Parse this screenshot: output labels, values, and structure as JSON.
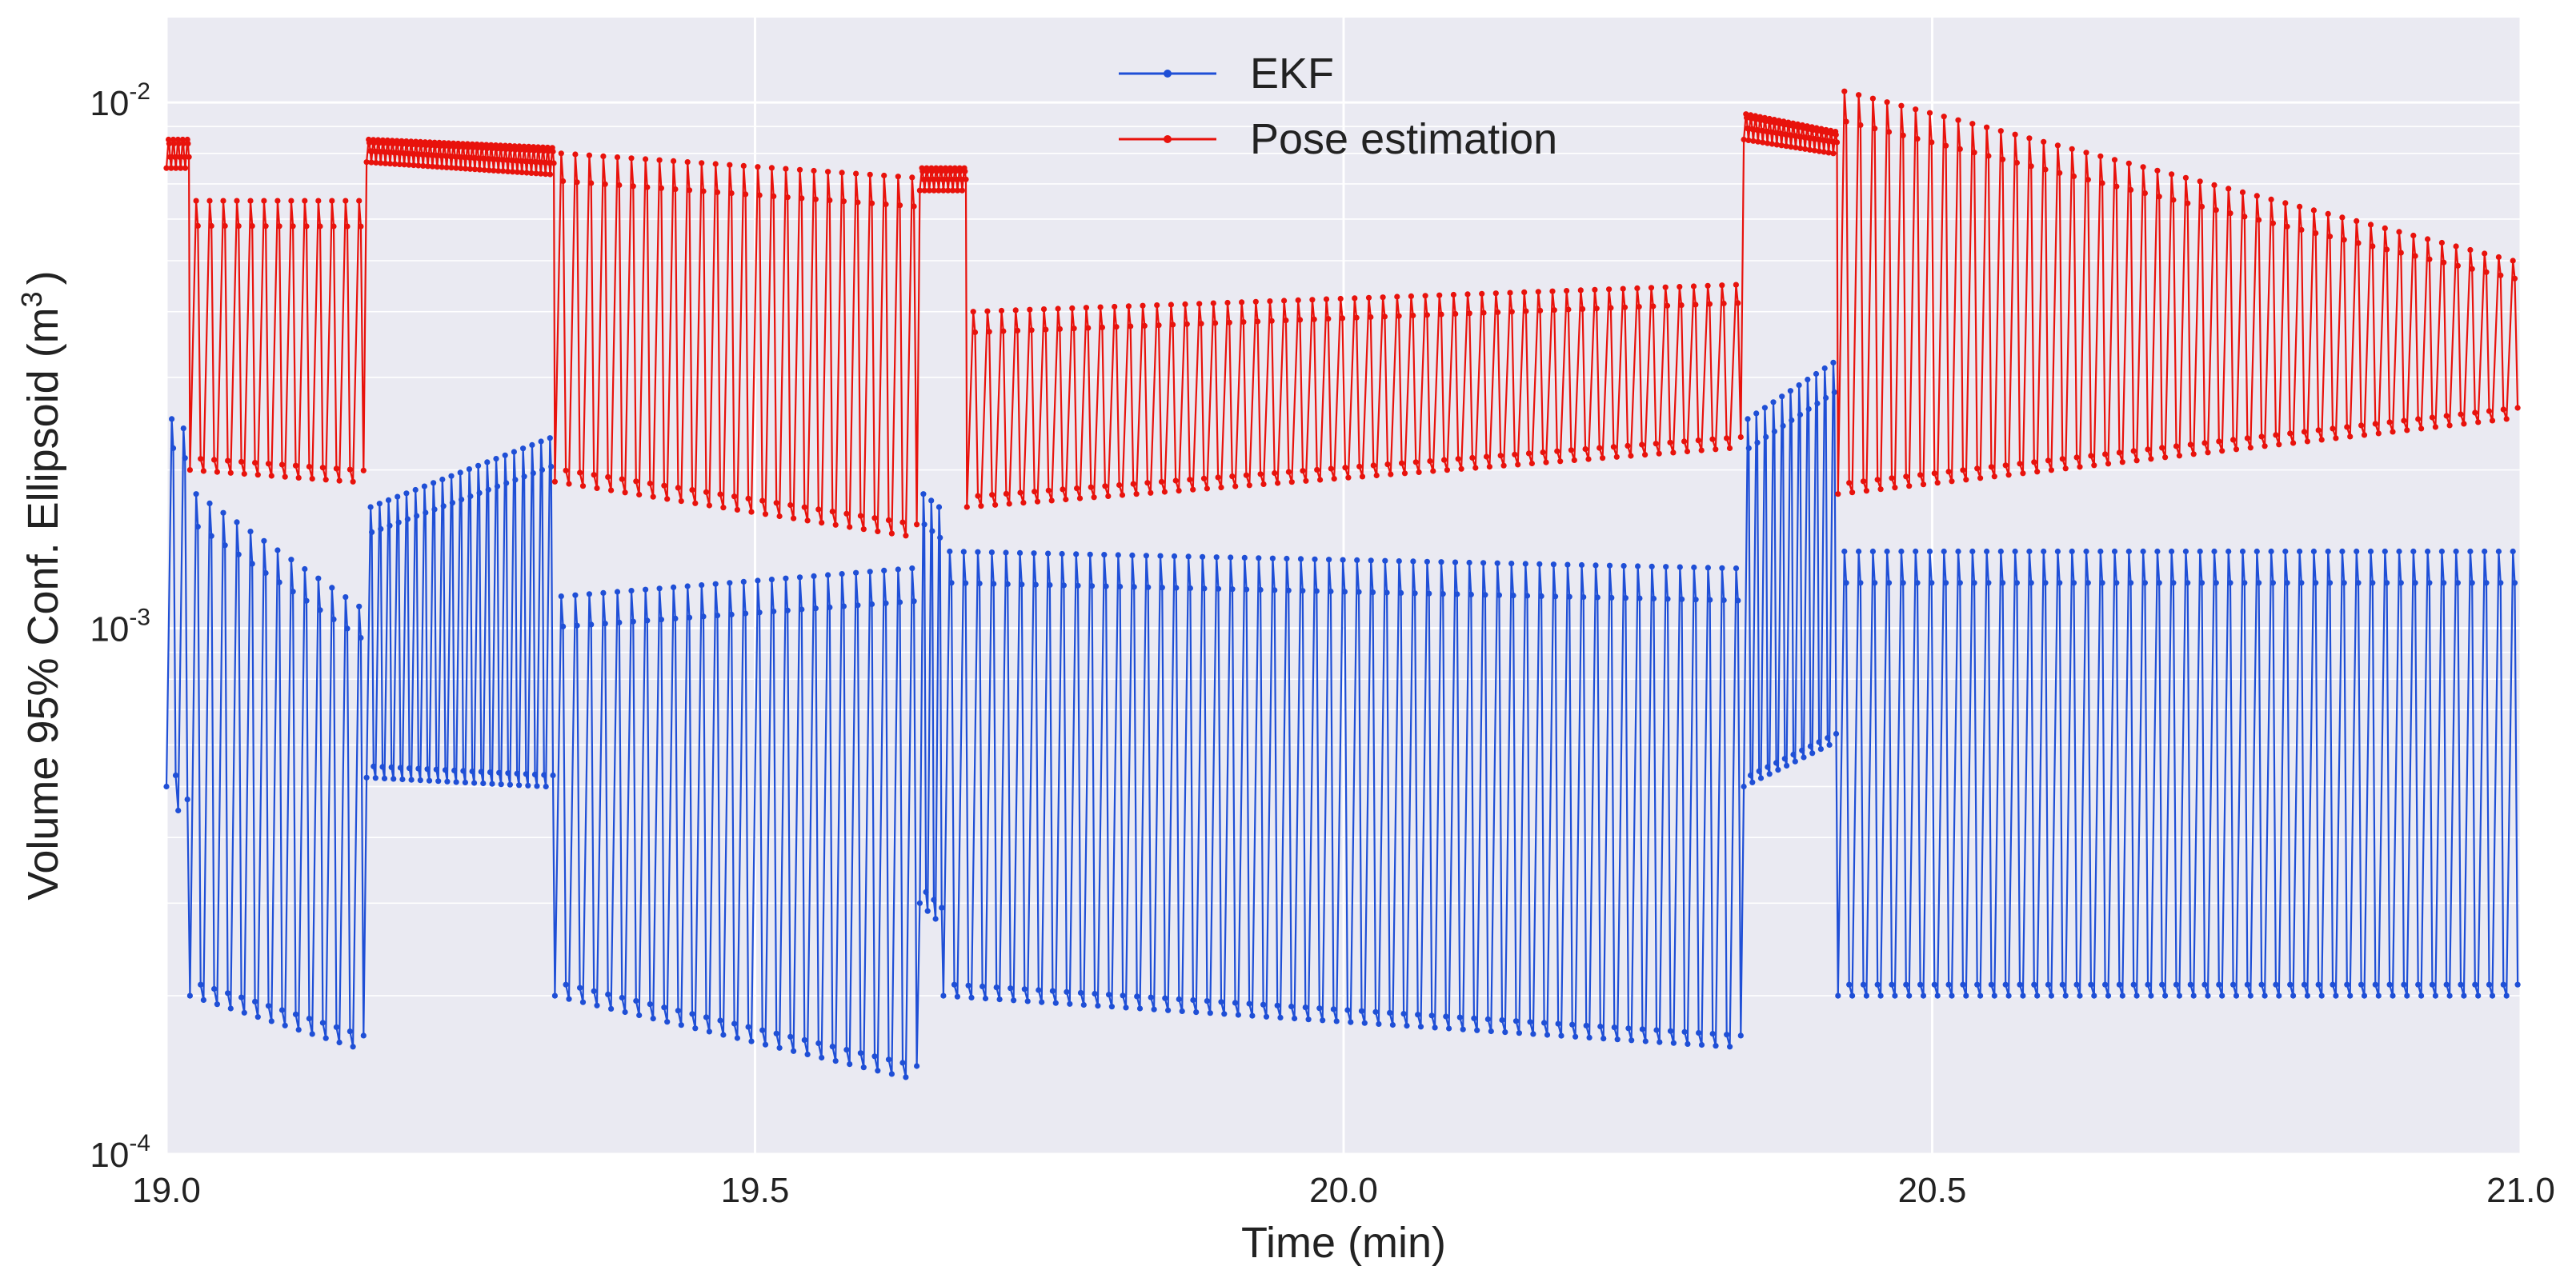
{
  "chart_data": {
    "type": "line",
    "title": "",
    "xlabel": "Time (min)",
    "ylabel_main": "Volume 95% Conf. Ellipsoid (m",
    "ylabel_sup": "3",
    "ylabel_end": ")",
    "xlim": [
      19.0,
      21.0
    ],
    "ylim": [
      0.0001,
      0.0145
    ],
    "yscale": "log",
    "grid": true,
    "legend_position": "top-center",
    "xticks": [
      {
        "value": 19.0,
        "label": "19.0"
      },
      {
        "value": 19.5,
        "label": "19.5"
      },
      {
        "value": 20.0,
        "label": "20.0"
      },
      {
        "value": 20.5,
        "label": "20.5"
      },
      {
        "value": 21.0,
        "label": "21.0"
      }
    ],
    "yticks": [
      {
        "value": 0.0001,
        "base": "10",
        "exp": "-4"
      },
      {
        "value": 0.001,
        "base": "10",
        "exp": "-3"
      },
      {
        "value": 0.01,
        "base": "10",
        "exp": "-2"
      }
    ],
    "colors": {
      "background": "#eaeaf2",
      "grid": "#ffffff"
    },
    "series": [
      {
        "name": "EKF",
        "color": "#1f4fd6",
        "segments": [
          {
            "start": 19.0,
            "end": 19.02,
            "period": 0.008,
            "peak_start": 0.0025,
            "peak_end": 0.0024,
            "trough_start": 0.0005,
            "trough_end": 0.00045
          },
          {
            "start": 19.02,
            "end": 19.17,
            "period": 0.012,
            "peak_start": 0.0018,
            "peak_end": 0.0011,
            "trough_start": 0.0002,
            "trough_end": 0.00016
          },
          {
            "start": 19.17,
            "end": 19.33,
            "period": 0.0075,
            "peak_start": 0.0017,
            "peak_end": 0.0023,
            "trough_start": 0.00052,
            "trough_end": 0.0005
          },
          {
            "start": 19.33,
            "end": 19.64,
            "period": 0.012,
            "peak_start": 0.00115,
            "peak_end": 0.0013,
            "trough_start": 0.0002,
            "trough_end": 0.00014
          },
          {
            "start": 19.64,
            "end": 19.66,
            "period": 0.0075,
            "peak_start": 0.0018,
            "peak_end": 0.0017,
            "trough_start": 0.0003,
            "trough_end": 0.00028
          },
          {
            "start": 19.66,
            "end": 20.34,
            "period": 0.012,
            "peak_start": 0.0014,
            "peak_end": 0.0013,
            "trough_start": 0.0002,
            "trough_end": 0.00016
          },
          {
            "start": 20.34,
            "end": 20.42,
            "period": 0.0075,
            "peak_start": 0.0025,
            "peak_end": 0.0032,
            "trough_start": 0.0005,
            "trough_end": 0.0006
          },
          {
            "start": 20.42,
            "end": 21.0,
            "period": 0.012,
            "peak_start": 0.0014,
            "peak_end": 0.0014,
            "trough_start": 0.0002,
            "trough_end": 0.0002
          }
        ]
      },
      {
        "name": "Pose estimation",
        "color": "#e8120c",
        "segments": [
          {
            "start": 19.0,
            "end": 19.02,
            "period": 0.004,
            "peak_start": 0.0085,
            "peak_end": 0.0085,
            "trough_start": 0.0075,
            "trough_end": 0.0075
          },
          {
            "start": 19.02,
            "end": 19.17,
            "period": 0.012,
            "peak_start": 0.0065,
            "peak_end": 0.0065,
            "trough_start": 0.002,
            "trough_end": 0.0019
          },
          {
            "start": 19.17,
            "end": 19.33,
            "period": 0.004,
            "peak_start": 0.0085,
            "peak_end": 0.0082,
            "trough_start": 0.0077,
            "trough_end": 0.0073
          },
          {
            "start": 19.33,
            "end": 19.64,
            "period": 0.012,
            "peak_start": 0.008,
            "peak_end": 0.0072,
            "trough_start": 0.0019,
            "trough_end": 0.0015
          },
          {
            "start": 19.64,
            "end": 19.68,
            "period": 0.004,
            "peak_start": 0.0075,
            "peak_end": 0.0075,
            "trough_start": 0.0068,
            "trough_end": 0.0068
          },
          {
            "start": 19.68,
            "end": 20.34,
            "period": 0.012,
            "peak_start": 0.004,
            "peak_end": 0.0045,
            "trough_start": 0.0017,
            "trough_end": 0.0022
          },
          {
            "start": 20.34,
            "end": 20.42,
            "period": 0.004,
            "peak_start": 0.0095,
            "peak_end": 0.0088,
            "trough_start": 0.0085,
            "trough_end": 0.008
          },
          {
            "start": 20.42,
            "end": 21.0,
            "period": 0.012,
            "peak_start": 0.0105,
            "peak_end": 0.005,
            "trough_start": 0.0018,
            "trough_end": 0.0025
          }
        ]
      }
    ]
  }
}
